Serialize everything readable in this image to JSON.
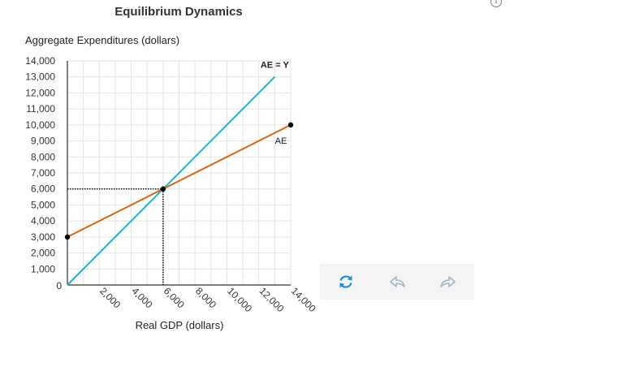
{
  "chart_data": {
    "type": "line",
    "title": "Equilibrium Dynamics",
    "xlabel": "Real GDP (dollars)",
    "ylabel": "Aggregate Expenditures (dollars)",
    "xlim": [
      0,
      14000
    ],
    "ylim": [
      0,
      14000
    ],
    "x_ticks": [
      2000,
      4000,
      6000,
      8000,
      10000,
      12000,
      14000
    ],
    "x_tick_labels": [
      "2,000",
      "4,000",
      "6,000",
      "8,000",
      "10,000",
      "12,000",
      "14,000"
    ],
    "y_ticks": [
      1000,
      2000,
      3000,
      4000,
      5000,
      6000,
      7000,
      8000,
      9000,
      10000,
      11000,
      12000,
      13000,
      14000
    ],
    "y_tick_labels": [
      "1,000",
      "2,000",
      "3,000",
      "4,000",
      "5,000",
      "6,000",
      "7,000",
      "8,000",
      "9,000",
      "10,000",
      "11,000",
      "12,000",
      "13,000",
      "14,000"
    ],
    "origin_label": "0",
    "grid": true,
    "series": [
      {
        "name": "AE = Y",
        "color": "#1ab4d2",
        "points": [
          [
            0,
            0
          ],
          [
            13000,
            13000
          ]
        ]
      },
      {
        "name": "AE",
        "color": "#d9660f",
        "points": [
          [
            0,
            3000
          ],
          [
            14000,
            10000
          ]
        ],
        "markers": [
          [
            0,
            3000
          ],
          [
            14000,
            10000
          ]
        ]
      }
    ],
    "equilibrium": {
      "x": 6000,
      "y": 6000
    }
  },
  "toolbar": {
    "reset": "refresh-icon",
    "undo": "undo-icon",
    "redo": "redo-icon"
  },
  "colors": {
    "accent": "#1ab4d2",
    "ae_line": "#d9660f",
    "toolbar_icon_active": "#1a8fd6",
    "toolbar_icon_inactive": "#a7b6c4"
  }
}
